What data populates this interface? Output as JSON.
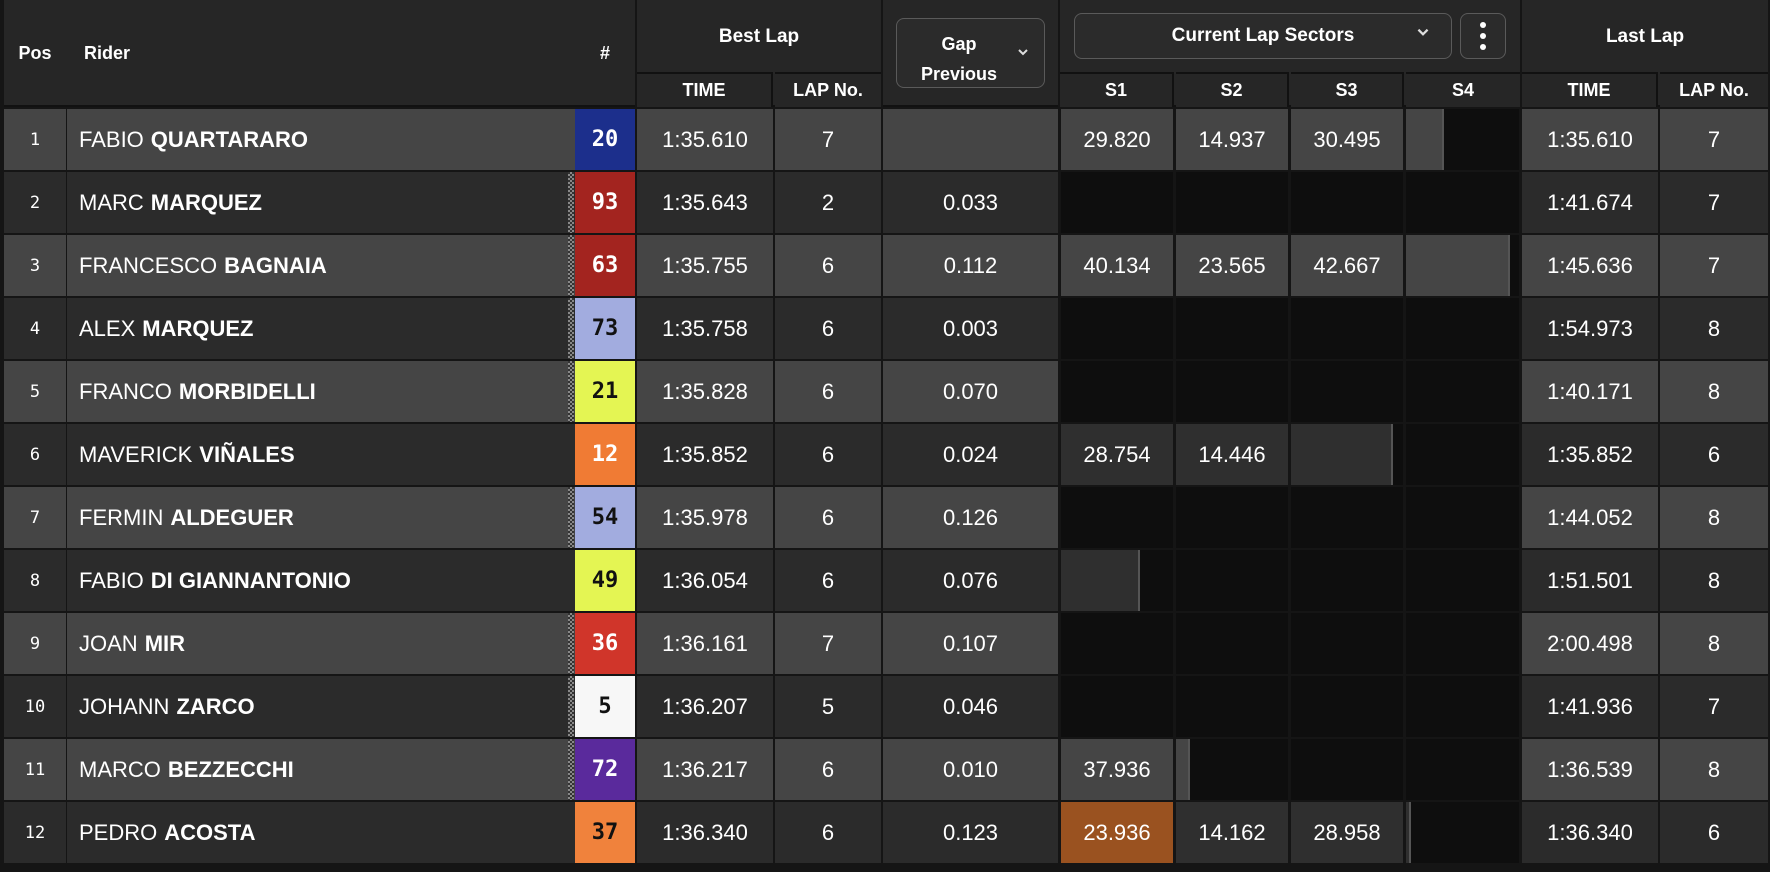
{
  "header": {
    "pos": "Pos",
    "rider": "Rider",
    "number": "#",
    "best_lap": "Best Lap",
    "best_time": "TIME",
    "best_lapno": "LAP No.",
    "gap_line1": "Gap",
    "gap_line2": "Previous",
    "sectors_dropdown": "Current Lap Sectors",
    "s1": "S1",
    "s2": "S2",
    "s3": "S3",
    "s4": "S4",
    "last_lap": "Last Lap",
    "last_time": "TIME",
    "last_lapno": "LAP No."
  },
  "icons": {
    "gap_chevron": "chevron-down-icon",
    "sectors_chevron": "chevron-down-icon",
    "menu": "kebab-menu-icon"
  },
  "colors": {
    "sector_fill": "#4a4a4a",
    "sector_dark": "#0e0e0e",
    "best_sector": "#9a5220"
  },
  "rows": [
    {
      "pos": "1",
      "first": "FABIO",
      "last": "QUARTARARO",
      "num": "20",
      "num_bg": "#1c2f8c",
      "num_fg": "#ffffff",
      "checker": false,
      "best_time": "1:35.610",
      "best_lap": "7",
      "gap": "",
      "sectors": [
        {
          "t": "29.820",
          "p": 1
        },
        {
          "t": "14.937",
          "p": 1
        },
        {
          "t": "30.495",
          "p": 1
        },
        {
          "t": "",
          "p": 0.32
        }
      ],
      "last_time": "1:35.610",
      "last_lap": "7"
    },
    {
      "pos": "2",
      "first": "MARC",
      "last": "MARQUEZ",
      "num": "93",
      "num_bg": "#a3241f",
      "num_fg": "#ffffff",
      "checker": true,
      "best_time": "1:35.643",
      "best_lap": "2",
      "gap": "0.033",
      "sectors": [
        {
          "t": "",
          "p": 0
        },
        {
          "t": "",
          "p": 0
        },
        {
          "t": "",
          "p": 0
        },
        {
          "t": "",
          "p": 0
        }
      ],
      "last_time": "1:41.674",
      "last_lap": "7"
    },
    {
      "pos": "3",
      "first": "FRANCESCO",
      "last": "BAGNAIA",
      "num": "63",
      "num_bg": "#a3241f",
      "num_fg": "#ffffff",
      "checker": true,
      "best_time": "1:35.755",
      "best_lap": "6",
      "gap": "0.112",
      "sectors": [
        {
          "t": "40.134",
          "p": 1
        },
        {
          "t": "23.565",
          "p": 1
        },
        {
          "t": "42.667",
          "p": 1
        },
        {
          "t": "",
          "p": 0.9
        }
      ],
      "last_time": "1:45.636",
      "last_lap": "7"
    },
    {
      "pos": "4",
      "first": "ALEX",
      "last": "MARQUEZ",
      "num": "73",
      "num_bg": "#a2acdf",
      "num_fg": "#111111",
      "checker": true,
      "best_time": "1:35.758",
      "best_lap": "6",
      "gap": "0.003",
      "sectors": [
        {
          "t": "",
          "p": 0
        },
        {
          "t": "",
          "p": 0
        },
        {
          "t": "",
          "p": 0
        },
        {
          "t": "",
          "p": 0
        }
      ],
      "last_time": "1:54.973",
      "last_lap": "8"
    },
    {
      "pos": "5",
      "first": "FRANCO",
      "last": "MORBIDELLI",
      "num": "21",
      "num_bg": "#e4f553",
      "num_fg": "#111111",
      "checker": true,
      "best_time": "1:35.828",
      "best_lap": "6",
      "gap": "0.070",
      "sectors": [
        {
          "t": "",
          "p": 0
        },
        {
          "t": "",
          "p": 0
        },
        {
          "t": "",
          "p": 0
        },
        {
          "t": "",
          "p": 0
        }
      ],
      "last_time": "1:40.171",
      "last_lap": "8"
    },
    {
      "pos": "6",
      "first": "MAVERICK",
      "last": "VIÑALES",
      "num": "12",
      "num_bg": "#f07b34",
      "num_fg": "#ffffff",
      "checker": false,
      "best_time": "1:35.852",
      "best_lap": "6",
      "gap": "0.024",
      "sectors": [
        {
          "t": "28.754",
          "p": 1
        },
        {
          "t": "14.446",
          "p": 1
        },
        {
          "t": "",
          "p": 0.89
        },
        {
          "t": "",
          "p": 0
        }
      ],
      "last_time": "1:35.852",
      "last_lap": "6"
    },
    {
      "pos": "7",
      "first": "FERMIN",
      "last": "ALDEGUER",
      "num": "54",
      "num_bg": "#a2acdf",
      "num_fg": "#111111",
      "checker": true,
      "best_time": "1:35.978",
      "best_lap": "6",
      "gap": "0.126",
      "sectors": [
        {
          "t": "",
          "p": 0
        },
        {
          "t": "",
          "p": 0
        },
        {
          "t": "",
          "p": 0
        },
        {
          "t": "",
          "p": 0
        }
      ],
      "last_time": "1:44.052",
      "last_lap": "8"
    },
    {
      "pos": "8",
      "first": "FABIO",
      "last": "DI GIANNANTONIO",
      "num": "49",
      "num_bg": "#e4f553",
      "num_fg": "#111111",
      "checker": false,
      "best_time": "1:36.054",
      "best_lap": "6",
      "gap": "0.076",
      "sectors": [
        {
          "t": "",
          "p": 0.69
        },
        {
          "t": "",
          "p": 0
        },
        {
          "t": "",
          "p": 0
        },
        {
          "t": "",
          "p": 0
        }
      ],
      "last_time": "1:51.501",
      "last_lap": "8"
    },
    {
      "pos": "9",
      "first": "JOAN",
      "last": "MIR",
      "num": "36",
      "num_bg": "#d0352a",
      "num_fg": "#ffffff",
      "checker": true,
      "best_time": "1:36.161",
      "best_lap": "7",
      "gap": "0.107",
      "sectors": [
        {
          "t": "",
          "p": 0
        },
        {
          "t": "",
          "p": 0
        },
        {
          "t": "",
          "p": 0
        },
        {
          "t": "",
          "p": 0
        }
      ],
      "last_time": "2:00.498",
      "last_lap": "8"
    },
    {
      "pos": "10",
      "first": "JOHANN",
      "last": "ZARCO",
      "num": "5",
      "num_bg": "#f7f7f7",
      "num_fg": "#111111",
      "checker": true,
      "best_time": "1:36.207",
      "best_lap": "5",
      "gap": "0.046",
      "sectors": [
        {
          "t": "",
          "p": 0
        },
        {
          "t": "",
          "p": 0
        },
        {
          "t": "",
          "p": 0
        },
        {
          "t": "",
          "p": 0
        }
      ],
      "last_time": "1:41.936",
      "last_lap": "7"
    },
    {
      "pos": "11",
      "first": "MARCO",
      "last": "BEZZECCHI",
      "num": "72",
      "num_bg": "#5a2a9c",
      "num_fg": "#ffffff",
      "checker": true,
      "best_time": "1:36.217",
      "best_lap": "6",
      "gap": "0.010",
      "sectors": [
        {
          "t": "37.936",
          "p": 1
        },
        {
          "t": "",
          "p": 0.11
        },
        {
          "t": "",
          "p": 0
        },
        {
          "t": "",
          "p": 0
        }
      ],
      "last_time": "1:36.539",
      "last_lap": "8"
    },
    {
      "pos": "12",
      "first": "PEDRO",
      "last": "ACOSTA",
      "num": "37",
      "num_bg": "#f0823c",
      "num_fg": "#111111",
      "checker": false,
      "best_time": "1:36.340",
      "best_lap": "6",
      "gap": "0.123",
      "sectors": [
        {
          "t": "23.936",
          "p": 1,
          "best": true
        },
        {
          "t": "14.162",
          "p": 1
        },
        {
          "t": "28.958",
          "p": 1
        },
        {
          "t": "",
          "p": 0.03
        }
      ],
      "last_time": "1:36.340",
      "last_lap": "6"
    }
  ]
}
